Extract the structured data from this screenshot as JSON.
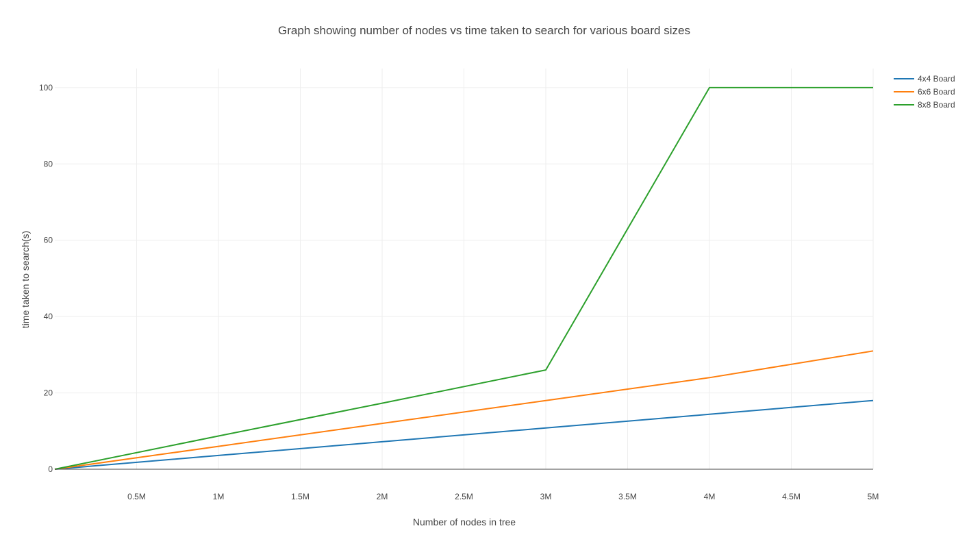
{
  "chart_data": {
    "type": "line",
    "title": "Graph showing number of nodes vs time taken to search for various board sizes",
    "xlabel": "Number of nodes in tree",
    "ylabel": "time taken to search(s)",
    "xlim": [
      0,
      5000000
    ],
    "ylim": [
      0,
      105
    ],
    "x_ticks": [
      {
        "value": 500000,
        "label": "0.5M"
      },
      {
        "value": 1000000,
        "label": "1M"
      },
      {
        "value": 1500000,
        "label": "1.5M"
      },
      {
        "value": 2000000,
        "label": "2M"
      },
      {
        "value": 2500000,
        "label": "2.5M"
      },
      {
        "value": 3000000,
        "label": "3M"
      },
      {
        "value": 3500000,
        "label": "3.5M"
      },
      {
        "value": 4000000,
        "label": "4M"
      },
      {
        "value": 4500000,
        "label": "4.5M"
      },
      {
        "value": 5000000,
        "label": "5M"
      }
    ],
    "y_ticks": [
      {
        "value": 0,
        "label": "0"
      },
      {
        "value": 20,
        "label": "20"
      },
      {
        "value": 40,
        "label": "40"
      },
      {
        "value": 60,
        "label": "60"
      },
      {
        "value": 80,
        "label": "80"
      },
      {
        "value": 100,
        "label": "100"
      }
    ],
    "grid": true,
    "legend_position": "top-right",
    "series": [
      {
        "name": "4x4 Board",
        "color": "#1f77b4",
        "x": [
          0,
          1000000,
          2000000,
          3000000,
          4000000,
          5000000
        ],
        "y": [
          0,
          3.6,
          7.2,
          10.8,
          14.4,
          18
        ]
      },
      {
        "name": "6x6 Board",
        "color": "#ff7f0e",
        "x": [
          0,
          1000000,
          2000000,
          3000000,
          4000000,
          5000000
        ],
        "y": [
          0,
          6,
          12,
          18,
          24,
          31
        ]
      },
      {
        "name": "8x8 Board",
        "color": "#2ca02c",
        "x": [
          0,
          1000000,
          2000000,
          3000000,
          4000000,
          5000000
        ],
        "y": [
          0,
          8.7,
          17.3,
          26,
          100,
          100
        ]
      }
    ]
  }
}
